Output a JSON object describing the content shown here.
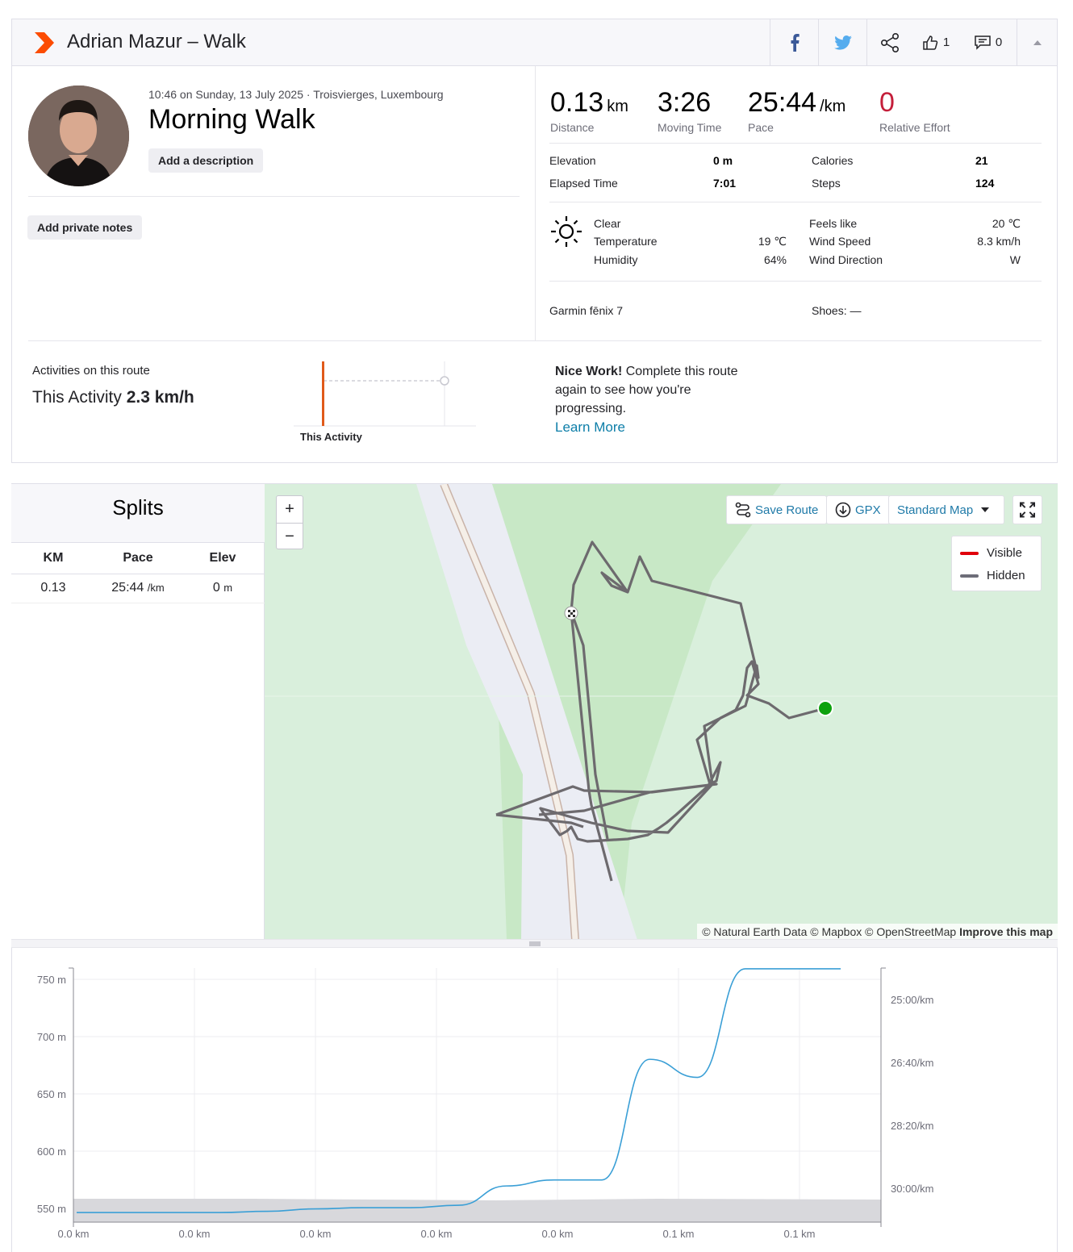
{
  "header": {
    "title": "Adrian Mazur – Walk",
    "kudos_count": "1",
    "comments_count": "0",
    "colors": {
      "brand": "#fc4c02",
      "facebook": "#3b5998",
      "twitter": "#55acee"
    }
  },
  "activity": {
    "meta": "10:46 on Sunday, 13 July 2025 · Troisvierges, Luxembourg",
    "title": "Morning Walk",
    "add_description": "Add a description",
    "add_private_notes": "Add private notes"
  },
  "stats": {
    "distance": {
      "value": "0.13",
      "unit": "km",
      "label": "Distance"
    },
    "moving_time": {
      "value": "3:26",
      "label": "Moving Time"
    },
    "pace": {
      "value": "25:44",
      "unit": "/km",
      "label": "Pace"
    },
    "relative_effort": {
      "value": "0",
      "label": "Relative Effort"
    },
    "elevation": {
      "label": "Elevation",
      "value": "0 m"
    },
    "calories": {
      "label": "Calories",
      "value": "21"
    },
    "elapsed_time": {
      "label": "Elapsed Time",
      "value": "7:01"
    },
    "steps": {
      "label": "Steps",
      "value": "124"
    }
  },
  "weather": {
    "condition": "Clear",
    "temperature_label": "Temperature",
    "temperature_value": "19 ℃",
    "humidity_label": "Humidity",
    "humidity_value": "64%",
    "feels_like_label": "Feels like",
    "feels_like_value": "20 ℃",
    "wind_speed_label": "Wind Speed",
    "wind_speed_value": "8.3 km/h",
    "wind_direction_label": "Wind Direction",
    "wind_direction_value": "W",
    "icon": "sun-icon"
  },
  "device": "Garmin fēnix 7",
  "shoes": "Shoes: —",
  "route": {
    "label": "Activities on this route",
    "this_activity_prefix": "This Activity",
    "this_activity_speed": "2.3 km/h",
    "bar_label": "This Activity",
    "nice_bold": "Nice Work!",
    "nice_text": " Complete this route again to see how you're progressing.",
    "learn_more": "Learn More"
  },
  "splits": {
    "title": "Splits",
    "columns": [
      "KM",
      "Pace",
      "Elev"
    ],
    "rows": [
      {
        "km": "0.13",
        "pace": "25:44",
        "pace_unit": "/km",
        "elev": "0",
        "elev_unit": "m"
      }
    ]
  },
  "map": {
    "zoom_in": "+",
    "zoom_out": "−",
    "save_route": "Save Route",
    "gpx": "GPX",
    "map_type": "Standard Map",
    "legend": [
      {
        "label": "Visible",
        "color": "#e0000b"
      },
      {
        "label": "Hidden",
        "color": "#6d6d78"
      }
    ],
    "attribution": "© Natural Earth Data © Mapbox © OpenStreetMap",
    "improve": "Improve this map"
  },
  "chart_data": {
    "type": "line",
    "y_ticks_left": [
      "750 m",
      "700 m",
      "650 m",
      "600 m",
      "550 m"
    ],
    "y_ticks_right": [
      "25:00/km",
      "26:40/km",
      "28:20/km",
      "30:00/km"
    ],
    "x_ticks": [
      "0.0 km",
      "0.0 km",
      "0.0 km",
      "0.0 km",
      "0.0 km",
      "0.1 km",
      "0.1 km"
    ],
    "ylim_left": [
      540,
      760
    ],
    "series": [
      {
        "color": "#3a9fd6",
        "pace_profile": [
          548,
          548,
          548,
          548,
          549,
          551,
          552,
          552,
          554,
          570,
          575,
          575,
          675,
          660,
          750,
          750,
          750
        ]
      }
    ]
  }
}
